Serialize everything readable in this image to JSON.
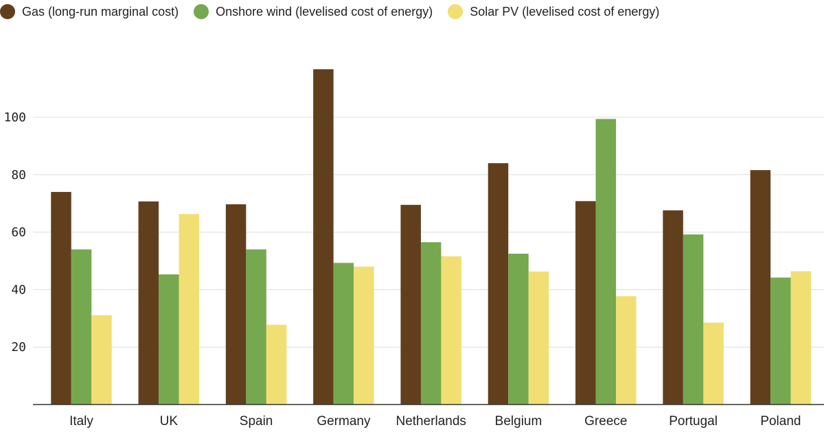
{
  "legend": {
    "items": [
      {
        "label": "Gas (long-run marginal cost)",
        "color": "#613f1d"
      },
      {
        "label": "Onshore wind (levelised cost of energy)",
        "color": "#76a84f"
      },
      {
        "label": "Solar PV (levelised cost of energy)",
        "color": "#f1df74"
      }
    ]
  },
  "chart_data": {
    "type": "bar",
    "categories": [
      "Italy",
      "UK",
      "Spain",
      "Germany",
      "Netherlands",
      "Belgium",
      "Greece",
      "Portugal",
      "Poland"
    ],
    "series": [
      {
        "name": "Gas (long-run marginal cost)",
        "color": "#613f1d",
        "values": [
          74,
          70.7,
          69.7,
          116.7,
          69.5,
          84,
          70.8,
          67.6,
          81.6
        ]
      },
      {
        "name": "Onshore wind (levelised cost of energy)",
        "color": "#76a84f",
        "values": [
          54,
          45.3,
          54,
          49.3,
          56.5,
          52.5,
          99.4,
          59.2,
          44.2
        ]
      },
      {
        "name": "Solar PV (levelised cost of energy)",
        "color": "#f1df74",
        "values": [
          31.1,
          66.3,
          27.8,
          48,
          51.6,
          46.3,
          37.7,
          28.5,
          46.4
        ]
      }
    ],
    "yticks": [
      "20",
      "40",
      "60",
      "80",
      "100"
    ],
    "ylim": [
      0,
      125
    ],
    "grid": true,
    "legend_position": "top-left",
    "title": "",
    "xlabel": "",
    "ylabel": ""
  }
}
